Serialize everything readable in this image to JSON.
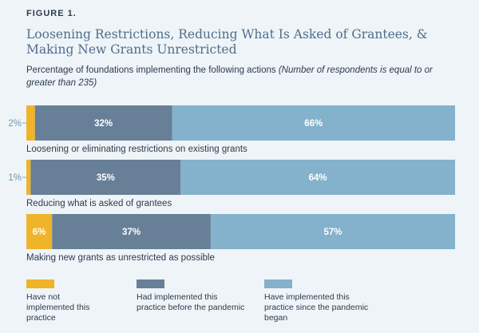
{
  "figure_label": "FIGURE 1.",
  "chart_data": {
    "type": "bar",
    "orientation": "horizontal",
    "stacked": true,
    "title": "Loosening Restrictions, Reducing What Is Asked of Grantees, & Making New Grants Unrestricted",
    "subtitle": "Percentage of foundations implementing the following actions",
    "subtitle_note": "(Number of respondents is equal to or greater than 235)",
    "categories": [
      "Loosening or eliminating restrictions on existing grants",
      "Reducing what is asked of grantees",
      "Making new grants as unrestricted as possible"
    ],
    "series": [
      {
        "name": "Have not implemented this practice",
        "values": [
          2,
          1,
          6
        ],
        "labels": [
          "2%",
          "1%",
          "6%"
        ],
        "color": "#f0b429"
      },
      {
        "name": "Had implemented this practice before the pandemic",
        "values": [
          32,
          35,
          37
        ],
        "labels": [
          "32%",
          "35%",
          "37%"
        ],
        "color": "#687f98"
      },
      {
        "name": "Have implemented this practice since the pandemic began",
        "values": [
          66,
          64,
          57
        ],
        "labels": [
          "66%",
          "64%",
          "57%"
        ],
        "color": "#84b1cb"
      }
    ],
    "xlim": [
      0,
      100
    ],
    "legend_position": "bottom"
  }
}
